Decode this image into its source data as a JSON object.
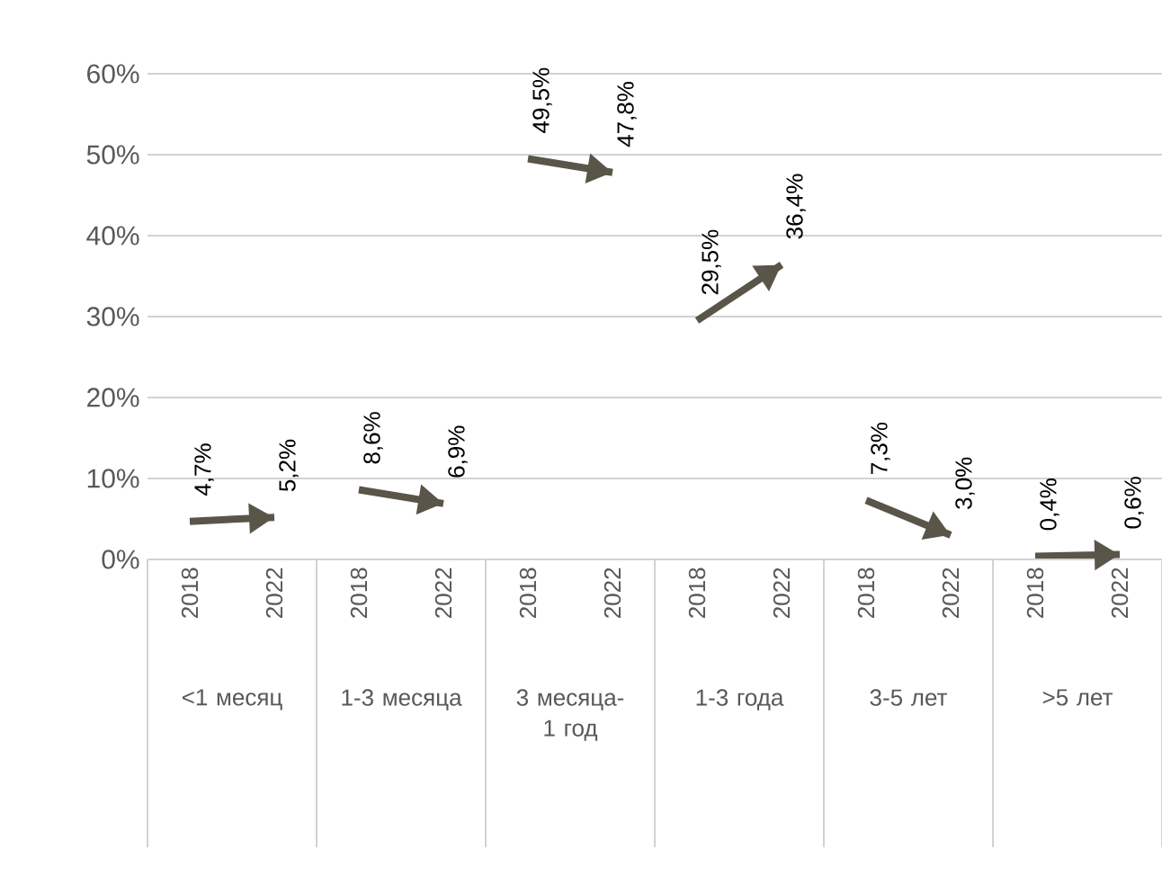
{
  "chart_data": {
    "type": "line",
    "categories": [
      "2018",
      "2022",
      "2018",
      "2022",
      "2018",
      "2022",
      "2018",
      "2022",
      "2018",
      "2022",
      "2018",
      "2022"
    ],
    "annotations": [
      "<1 месяц",
      "1-3 месяца",
      "3 месяца-1 год",
      "1-3 года",
      "3-5 лет",
      ">5 лет"
    ],
    "series": [
      {
        "color": "#5a5549",
        "values": [
          4.7,
          5.2,
          null,
          null,
          null,
          null,
          null,
          null,
          null,
          null,
          null,
          null
        ],
        "value_labels": [
          "4,7%",
          "5,2%",
          null,
          null,
          null,
          null,
          null,
          null,
          null,
          null,
          null,
          null
        ]
      },
      {
        "color": "#5a5549",
        "values": [
          null,
          null,
          8.6,
          6.9,
          null,
          null,
          null,
          null,
          null,
          null,
          null,
          null
        ],
        "value_labels": [
          null,
          null,
          "8,6%",
          "6,9%",
          null,
          null,
          null,
          null,
          null,
          null,
          null,
          null
        ]
      },
      {
        "color": "#5a5549",
        "values": [
          null,
          null,
          null,
          null,
          49.5,
          47.8,
          null,
          null,
          null,
          null,
          null,
          null
        ],
        "value_labels": [
          null,
          null,
          null,
          null,
          "49,5%",
          "47,8%",
          null,
          null,
          null,
          null,
          null,
          null
        ]
      },
      {
        "color": "#5a5549",
        "values": [
          null,
          null,
          null,
          null,
          null,
          null,
          29.5,
          36.4,
          null,
          null,
          null,
          null
        ],
        "value_labels": [
          null,
          null,
          null,
          null,
          null,
          null,
          "29,5%",
          "36,4%",
          null,
          null,
          null,
          null
        ]
      },
      {
        "color": "#5a5549",
        "values": [
          null,
          null,
          null,
          null,
          null,
          null,
          null,
          null,
          7.3,
          3.0,
          null,
          null
        ],
        "value_labels": [
          null,
          null,
          null,
          null,
          null,
          null,
          null,
          null,
          "7,3%",
          "3,0%",
          null,
          null
        ]
      },
      {
        "color": "#5a5549",
        "values": [
          null,
          null,
          null,
          null,
          null,
          null,
          null,
          null,
          null,
          null,
          0.4,
          0.6
        ],
        "value_labels": [
          null,
          null,
          null,
          null,
          null,
          null,
          null,
          null,
          null,
          null,
          "0,4%",
          "0,6%"
        ]
      }
    ],
    "ylim": [
      0,
      60
    ],
    "yticks": [
      {
        "value": 0,
        "label": "0%"
      },
      {
        "value": 10,
        "label": "10%"
      },
      {
        "value": 20,
        "label": "20%"
      },
      {
        "value": 30,
        "label": "30%"
      },
      {
        "value": 40,
        "label": "40%"
      },
      {
        "value": 50,
        "label": "50%"
      },
      {
        "value": 60,
        "label": "60%"
      }
    ],
    "grid": "y",
    "marker": "none",
    "line_style": "solid"
  }
}
